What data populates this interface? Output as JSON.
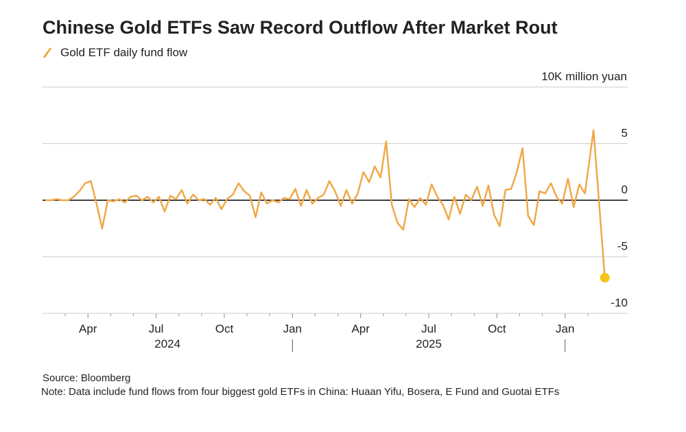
{
  "chart_data": {
    "type": "line",
    "title": "Chinese Gold ETFs Saw Record Outflow After Market Rout",
    "y_label": "10K million yuan",
    "source": "Source: Bloomberg",
    "note": "Note: Data include fund flows from four biggest gold ETFs in China: Huaan Yifu, Bosera, E Fund and Guotai ETFs",
    "x": [
      "2024-02",
      "2024-02",
      "2024-02",
      "2024-02",
      "2024-03",
      "2024-03",
      "2024-03",
      "2024-03",
      "2024-04",
      "2024-04",
      "2024-04",
      "2024-04",
      "2024-05",
      "2024-05",
      "2024-05",
      "2024-05",
      "2024-06",
      "2024-06",
      "2024-06",
      "2024-06",
      "2024-07",
      "2024-07",
      "2024-07",
      "2024-07",
      "2024-08",
      "2024-08",
      "2024-08",
      "2024-08",
      "2024-09",
      "2024-09",
      "2024-09",
      "2024-09",
      "2024-10",
      "2024-10",
      "2024-10",
      "2024-10",
      "2024-11",
      "2024-11",
      "2024-11",
      "2024-11",
      "2024-12",
      "2024-12",
      "2024-12",
      "2024-12",
      "2025-01",
      "2025-01",
      "2025-01",
      "2025-01",
      "2025-02",
      "2025-02",
      "2025-02",
      "2025-02",
      "2025-03",
      "2025-03",
      "2025-03",
      "2025-03",
      "2025-04",
      "2025-04",
      "2025-04",
      "2025-04",
      "2025-05",
      "2025-05",
      "2025-05",
      "2025-05",
      "2025-06",
      "2025-06",
      "2025-06",
      "2025-06",
      "2025-07",
      "2025-07",
      "2025-07",
      "2025-07",
      "2025-08",
      "2025-08",
      "2025-08",
      "2025-08",
      "2025-09",
      "2025-09",
      "2025-09",
      "2025-09",
      "2025-10",
      "2025-10",
      "2025-10",
      "2025-10",
      "2025-11",
      "2025-11",
      "2025-11",
      "2025-11",
      "2025-12",
      "2025-12",
      "2025-12",
      "2025-12",
      "2026-01",
      "2026-01",
      "2026-01",
      "2026-01",
      "2026-02",
      "2026-02"
    ],
    "series": [
      {
        "name": "Gold ETF daily fund flow",
        "color": "#f0a848",
        "values": [
          0,
          0,
          0.1,
          0,
          0,
          0.3,
          0.8,
          1.5,
          1.7,
          -0.3,
          -2.5,
          0,
          -0.1,
          0.1,
          -0.2,
          0.3,
          0.4,
          0,
          0.3,
          -0.2,
          0.3,
          -1,
          0.4,
          0.1,
          0.9,
          -0.3,
          0.5,
          0,
          0.1,
          -0.4,
          0.2,
          -0.8,
          0.1,
          0.5,
          1.5,
          0.8,
          0.4,
          -1.5,
          0.7,
          -0.3,
          0,
          -0.2,
          0.2,
          0.1,
          1,
          -0.5,
          0.9,
          -0.3,
          0.2,
          0.5,
          1.7,
          0.8,
          -0.5,
          0.9,
          -0.3,
          0.6,
          2.5,
          1.6,
          3,
          2,
          5.2,
          -0.4,
          -2,
          -2.6,
          0.1,
          -0.6,
          0.2,
          -0.4,
          1.4,
          0.3,
          -0.4,
          -1.7,
          0.3,
          -1.2,
          0.5,
          0,
          1.2,
          -0.5,
          1.3,
          -1.3,
          -2.3,
          0.9,
          1,
          2.5,
          4.6,
          -1.4,
          -2.2,
          0.8,
          0.6,
          1.5,
          0.3,
          -0.3,
          1.9,
          -0.6,
          1.4,
          0.6,
          6.2,
          -6.85
        ]
      }
    ],
    "highlight_last": true,
    "highlight_color": "#f5c518",
    "xlim": [
      "2024-02",
      "2026-03"
    ],
    "xticks": [
      {
        "value": "2024-04",
        "label": "Apr"
      },
      {
        "value": "2024-07",
        "label": "Jul"
      },
      {
        "value": "2024-10",
        "label": "Oct"
      },
      {
        "value": "2025-01",
        "label": "Jan"
      },
      {
        "value": "2025-04",
        "label": "Apr"
      },
      {
        "value": "2025-07",
        "label": "Jul"
      },
      {
        "value": "2025-10",
        "label": "Oct"
      },
      {
        "value": "2026-01",
        "label": "Jan"
      }
    ],
    "years": [
      2024,
      2025
    ],
    "ylim": [
      -10,
      10
    ],
    "yticks": [
      -10,
      -5,
      0,
      5
    ],
    "grid": true
  }
}
